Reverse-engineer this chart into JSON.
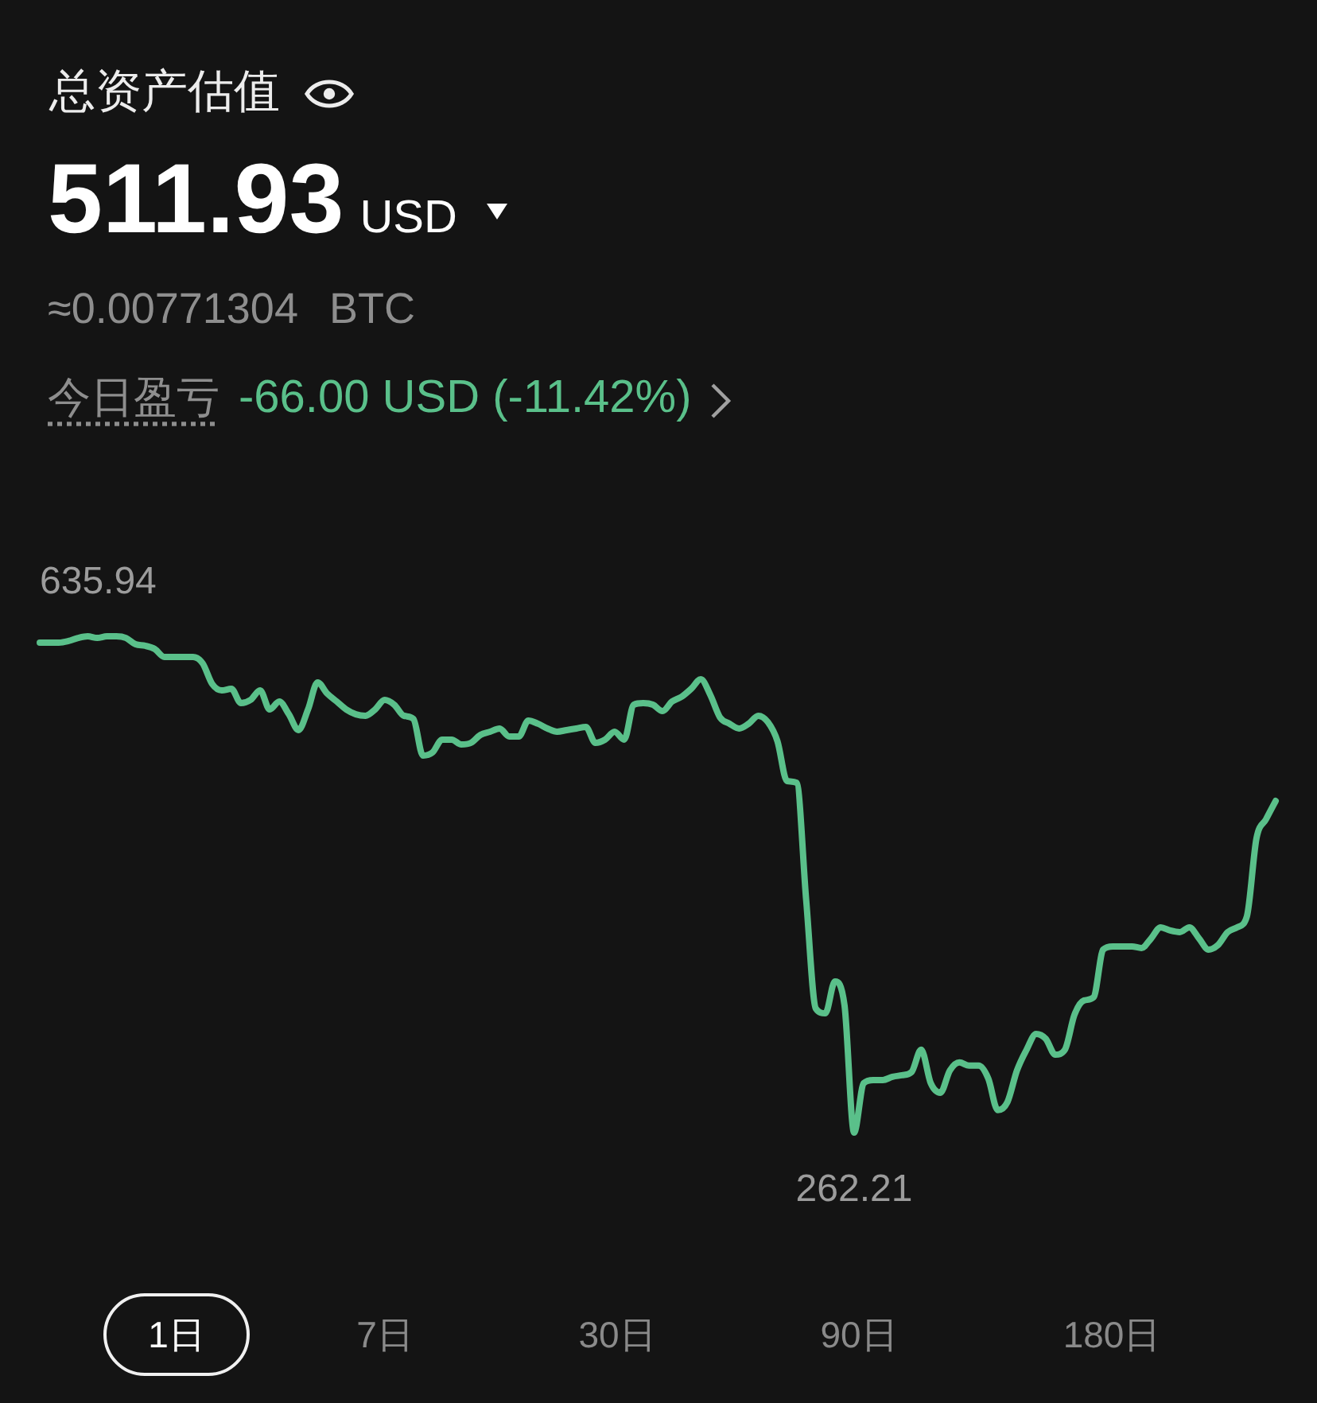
{
  "chart_data": {
    "type": "line",
    "title": "总资产估值",
    "subtitle": "511.93",
    "annotations": [
      "USD",
      "≈0.00771304 BTC",
      "今日盈亏",
      "-66.00 USD (-11.42%)",
      "1日",
      "7日",
      "30日",
      "90日",
      "180日"
    ],
    "categories": [
      null,
      null,
      null,
      null,
      null,
      null,
      null,
      null,
      null,
      null,
      null,
      null,
      null,
      null,
      null,
      null,
      null,
      null,
      null,
      null,
      null,
      null,
      null,
      null,
      null,
      null,
      null,
      null,
      null,
      null,
      null,
      null,
      null,
      null,
      null,
      null,
      null,
      null,
      null,
      null,
      null,
      null,
      null,
      null,
      null,
      null,
      null,
      null,
      null,
      null,
      null,
      null,
      null,
      null,
      null,
      null,
      null,
      null,
      null,
      null,
      null,
      null,
      null,
      null,
      null,
      null,
      null,
      null,
      null,
      null,
      null,
      null,
      null,
      null,
      null,
      null,
      null,
      null,
      null,
      null,
      null,
      null,
      null,
      null,
      null,
      null,
      null,
      null,
      null,
      null,
      null,
      null,
      null,
      null,
      null,
      null,
      null,
      null,
      null,
      null,
      null,
      null,
      null,
      null,
      null,
      null,
      null,
      null,
      null,
      null,
      null,
      null,
      null,
      null,
      null,
      null,
      null,
      null,
      null,
      null,
      null,
      null,
      null,
      null,
      null,
      null,
      null,
      null,
      null,
      null
    ],
    "values": [
      631.2,
      631.2,
      631.2,
      632.4,
      634.7,
      635.94,
      634.7,
      635.94,
      635.94,
      634.7,
      629.9,
      628.8,
      626.4,
      620.4,
      620.4,
      620.4,
      620.4,
      615.6,
      600.0,
      595.2,
      596.4,
      585.6,
      588.0,
      595.2,
      580.8,
      586.8,
      577.2,
      565.3,
      580.8,
      601.2,
      592.8,
      586.8,
      580.8,
      577.2,
      576.1,
      580.8,
      588.0,
      584.4,
      576.1,
      573.7,
      546.1,
      548.5,
      558.1,
      558.1,
      554.5,
      555.7,
      561.7,
      564.1,
      566.5,
      560.5,
      560.5,
      572.5,
      570.1,
      566.5,
      564.1,
      565.3,
      566.5,
      567.7,
      555.7,
      558.1,
      564.1,
      558.1,
      584.4,
      585.6,
      584.4,
      579.6,
      586.8,
      590.4,
      596.4,
      603.6,
      591.6,
      574.9,
      570.1,
      566.5,
      570.1,
      576.1,
      571.3,
      556.9,
      526.9,
      525.7,
      437.1,
      355.7,
      352.1,
      376.0,
      358.0,
      262.21,
      299.4,
      301.8,
      301.8,
      304.2,
      305.4,
      307.8,
      324.6,
      299.4,
      292.2,
      309.0,
      315.0,
      312.6,
      312.6,
      303.0,
      279.1,
      285.1,
      309.0,
      324.6,
      336.5,
      332.9,
      320.9,
      324.6,
      350.9,
      361.7,
      364.1,
      400.0,
      402.4,
      402.4,
      402.4,
      401.2,
      408.4,
      416.8,
      414.4,
      413.2,
      416.8,
      408.4,
      400.0,
      403.6,
      413.2,
      416.8,
      425.1,
      483.8,
      498.2,
      511.93
    ],
    "value_labels": [
      null,
      null,
      null,
      null,
      null,
      "635.94",
      null,
      null,
      null,
      null,
      null,
      null,
      null,
      null,
      null,
      null,
      null,
      null,
      null,
      null,
      null,
      null,
      null,
      null,
      null,
      null,
      null,
      null,
      null,
      null,
      null,
      null,
      null,
      null,
      null,
      null,
      null,
      null,
      null,
      null,
      null,
      null,
      null,
      null,
      null,
      null,
      null,
      null,
      null,
      null,
      null,
      null,
      null,
      null,
      null,
      null,
      null,
      null,
      null,
      null,
      null,
      null,
      null,
      null,
      null,
      null,
      null,
      null,
      null,
      null,
      null,
      null,
      null,
      null,
      null,
      null,
      null,
      null,
      null,
      null,
      null,
      null,
      null,
      null,
      null,
      "262.21",
      null,
      null,
      null,
      null,
      null,
      null,
      null,
      null,
      null,
      null,
      null,
      null,
      null,
      null,
      null,
      null,
      null,
      null,
      null,
      null,
      null,
      null,
      null,
      null,
      null,
      null,
      null,
      null,
      null,
      null,
      null,
      null,
      null,
      null,
      null,
      null,
      null,
      null,
      null,
      null,
      null,
      null,
      null,
      null
    ],
    "color": "#5ac08a",
    "tick_labels": false
  }
}
